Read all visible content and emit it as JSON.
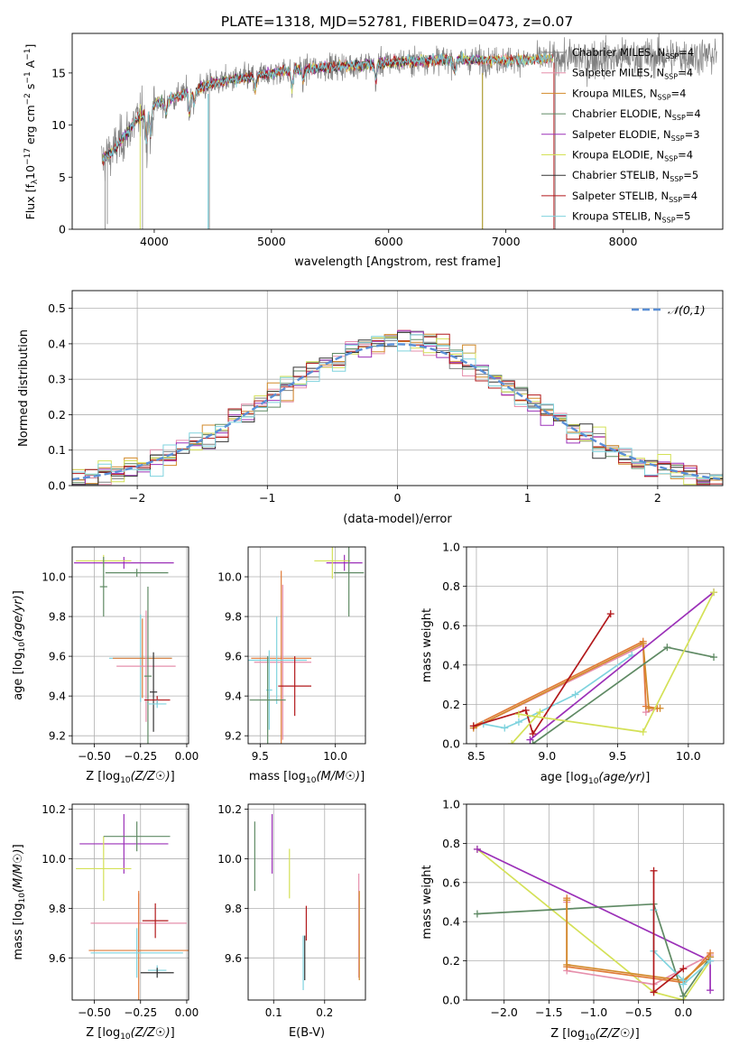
{
  "figure_title": "PLATE=1318, MJD=52781, FIBERID=0473, z=0.07",
  "colors": {
    "grey": "#808080",
    "orange": "#e07b39",
    "pink": "#e68fac",
    "darkorange": "#d28a2a",
    "green": "#5f8a64",
    "purple": "#9b30b8",
    "yellow": "#d4e157",
    "black": "#333333",
    "red": "#b2181b",
    "cyan": "#7fd3de",
    "blue": "#5a8fd6"
  },
  "chart_data": [
    {
      "id": "spectrum",
      "type": "line",
      "xlabel": "wavelength [Angstrom, rest frame]",
      "ylabel": "Flux [f_λ10^-17 erg cm^-2 s^-1 A^-1]",
      "xlim": [
        3300,
        8850
      ],
      "ylim": [
        0,
        18.8
      ],
      "xticks": [
        4000,
        5000,
        6000,
        7000,
        8000
      ],
      "yticks": [
        0,
        5,
        10,
        15
      ],
      "grid": false,
      "legend_position": "lower-right",
      "series": [
        {
          "name": "Chabrier MILES, N_SSP=4",
          "color": "#808080"
        },
        {
          "name": "Salpeter MILES, N_SSP=4",
          "color": "#e68fac"
        },
        {
          "name": "Kroupa MILES, N_SSP=4",
          "color": "#d28a2a"
        },
        {
          "name": "Chabrier ELODIE, N_SSP=4",
          "color": "#5f8a64"
        },
        {
          "name": "Salpeter ELODIE, N_SSP=3",
          "color": "#9b30b8"
        },
        {
          "name": "Kroupa ELODIE, N_SSP=4",
          "color": "#d4e157"
        },
        {
          "name": "Chabrier STELIB, N_SSP=5",
          "color": "#333333"
        },
        {
          "name": "Salpeter STELIB, N_SSP=4",
          "color": "#b2181b"
        },
        {
          "name": "Kroupa STELIB, N_SSP=5",
          "color": "#7fd3de"
        }
      ],
      "continuum_knots": [
        [
          3550,
          6.5
        ],
        [
          3700,
          8.2
        ],
        [
          3850,
          10.5
        ],
        [
          4000,
          12.0
        ],
        [
          4200,
          12.8
        ],
        [
          4500,
          14.0
        ],
        [
          4800,
          14.6
        ],
        [
          5100,
          15.2
        ],
        [
          5500,
          15.6
        ],
        [
          6000,
          16.0
        ],
        [
          6500,
          16.3
        ],
        [
          7000,
          16.2
        ],
        [
          7400,
          16.4
        ],
        [
          8000,
          16.5
        ],
        [
          8800,
          16.7
        ]
      ]
    },
    {
      "id": "residual_hist",
      "type": "step",
      "xlabel": "(data-model)/error",
      "ylabel": "Normed distribution",
      "xlim": [
        -2.5,
        2.5
      ],
      "ylim": [
        0,
        0.55
      ],
      "xticks": [
        -2,
        -1,
        0,
        1,
        2
      ],
      "yticks": [
        0.0,
        0.1,
        0.2,
        0.3,
        0.4,
        0.5
      ],
      "grid": true,
      "legend": "𝒩(0,1)",
      "legend_position": "top-right",
      "normal_curve": {
        "mean": 0,
        "std": 1,
        "color": "#5a8fd6"
      },
      "bin_width": 0.1
    },
    {
      "id": "age_vs_Z",
      "type": "errorbar",
      "xlabel": "Z [log₁₀(Z/Z☉)]",
      "ylabel": "age  [log₁₀(age/yr)]",
      "xlim": [
        -0.62,
        0.01
      ],
      "ylim": [
        9.16,
        10.15
      ],
      "xticks": [
        -0.5,
        -0.25,
        0.0
      ],
      "yticks": [
        9.2,
        9.4,
        9.6,
        9.8,
        10.0
      ],
      "grid": true,
      "points": [
        {
          "x": -0.34,
          "y": 10.07,
          "xerr": 0.27,
          "yerr": 0.03,
          "color": "#9b30b8"
        },
        {
          "x": -0.45,
          "y": 10.08,
          "xerr": 0.15,
          "yerr": 0.03,
          "color": "#d4e157"
        },
        {
          "x": -0.27,
          "y": 10.02,
          "xerr": 0.17,
          "yerr": 0.02,
          "color": "#5f8a64"
        },
        {
          "x": -0.45,
          "y": 9.95,
          "xerr": 0.02,
          "yerr": 0.15,
          "color": "#5f8a64"
        },
        {
          "x": -0.25,
          "y": 9.59,
          "xerr": 0.17,
          "yerr": 0.22,
          "color": "#7fd3de"
        },
        {
          "x": -0.24,
          "y": 9.59,
          "xerr": 0.16,
          "yerr": 0.2,
          "color": "#e07b39"
        },
        {
          "x": -0.22,
          "y": 9.55,
          "xerr": 0.16,
          "yerr": 0.28,
          "color": "#e68fac"
        },
        {
          "x": -0.21,
          "y": 9.5,
          "xerr": 0.02,
          "yerr": 0.45,
          "color": "#5f8a64"
        },
        {
          "x": -0.18,
          "y": 9.42,
          "xerr": 0.02,
          "yerr": 0.2,
          "color": "#333333"
        },
        {
          "x": -0.16,
          "y": 9.38,
          "xerr": 0.07,
          "yerr": 0.02,
          "color": "#b2181b"
        },
        {
          "x": -0.16,
          "y": 9.36,
          "xerr": 0.05,
          "yerr": 0.02,
          "color": "#7fd3de"
        }
      ]
    },
    {
      "id": "age_vs_mass",
      "type": "errorbar",
      "xlabel": "mass [log₁₀(M/M☉)]",
      "ylabel": "",
      "xlim": [
        9.42,
        10.2
      ],
      "ylim": [
        9.16,
        10.15
      ],
      "xticks": [
        9.5,
        10.0
      ],
      "yticks": [
        9.2,
        9.4,
        9.6,
        9.8,
        10.0
      ],
      "grid": true,
      "points": [
        {
          "x": 10.06,
          "y": 10.07,
          "xerr": 0.12,
          "yerr": 0.04,
          "color": "#9b30b8"
        },
        {
          "x": 9.98,
          "y": 10.08,
          "xerr": 0.12,
          "yerr": 0.09,
          "color": "#d4e157"
        },
        {
          "x": 10.09,
          "y": 10.02,
          "xerr": 0.1,
          "yerr": 0.22,
          "color": "#5f8a64"
        },
        {
          "x": 9.64,
          "y": 9.59,
          "xerr": 0.2,
          "yerr": 0.44,
          "color": "#e07b39"
        },
        {
          "x": 9.65,
          "y": 9.57,
          "xerr": 0.19,
          "yerr": 0.39,
          "color": "#e68fac"
        },
        {
          "x": 9.61,
          "y": 9.58,
          "xerr": 0.2,
          "yerr": 0.22,
          "color": "#7fd3de"
        },
        {
          "x": 9.56,
          "y": 9.43,
          "xerr": 0.02,
          "yerr": 0.2,
          "color": "#7fd3de"
        },
        {
          "x": 9.55,
          "y": 9.38,
          "xerr": 0.12,
          "yerr": 0.22,
          "color": "#5f8a64"
        },
        {
          "x": 9.73,
          "y": 9.45,
          "xerr": 0.11,
          "yerr": 0.15,
          "color": "#b2181b"
        }
      ]
    },
    {
      "id": "weight_vs_age",
      "type": "line",
      "xlabel": "age  [log₁₀(age/yr)]",
      "ylabel": "mass weight",
      "xlim": [
        8.43,
        10.25
      ],
      "ylim": [
        0,
        1
      ],
      "xticks": [
        8.5,
        9.0,
        9.5,
        10.0
      ],
      "yticks": [
        0.0,
        0.2,
        0.4,
        0.6,
        0.8,
        1.0
      ],
      "grid": true,
      "series": [
        {
          "color": "#e68fac",
          "points": [
            [
              8.48,
              0.08
            ],
            [
              9.68,
              0.5
            ],
            [
              9.7,
              0.16
            ],
            [
              9.78,
              0.18
            ]
          ]
        },
        {
          "color": "#e07b39",
          "points": [
            [
              8.48,
              0.09
            ],
            [
              9.68,
              0.52
            ],
            [
              9.7,
              0.19
            ],
            [
              9.78,
              0.18
            ]
          ]
        },
        {
          "color": "#d28a2a",
          "points": [
            [
              8.48,
              0.08
            ],
            [
              9.68,
              0.51
            ],
            [
              9.72,
              0.18
            ],
            [
              9.8,
              0.18
            ]
          ]
        },
        {
          "color": "#7fd3de",
          "points": [
            [
              8.55,
              0.1
            ],
            [
              8.7,
              0.08
            ],
            [
              8.8,
              0.11
            ],
            [
              9.2,
              0.25
            ],
            [
              9.6,
              0.45
            ]
          ]
        },
        {
          "color": "#b2181b",
          "points": [
            [
              8.48,
              0.09
            ],
            [
              8.85,
              0.17
            ],
            [
              8.9,
              0.05
            ],
            [
              9.45,
              0.66
            ]
          ]
        },
        {
          "color": "#5f8a64",
          "points": [
            [
              8.9,
              0.0
            ],
            [
              9.85,
              0.49
            ],
            [
              10.18,
              0.44
            ]
          ]
        },
        {
          "color": "#9b30b8",
          "points": [
            [
              8.88,
              0.02
            ],
            [
              10.18,
              0.77
            ]
          ]
        },
        {
          "color": "#d4e157",
          "points": [
            [
              8.8,
              0.15
            ],
            [
              9.68,
              0.06
            ],
            [
              10.18,
              0.77
            ]
          ]
        },
        {
          "color": "#d4e157",
          "points": [
            [
              8.75,
              0.0
            ],
            [
              8.95,
              0.16
            ]
          ]
        }
      ]
    },
    {
      "id": "mass_vs_Z",
      "type": "errorbar",
      "xlabel": "Z [log₁₀(Z/Z☉)]",
      "ylabel": "mass [log₁₀(M/M☉)]",
      "xlim": [
        -0.62,
        0.01
      ],
      "ylim": [
        9.43,
        10.22
      ],
      "xticks": [
        -0.5,
        -0.25,
        0.0
      ],
      "yticks": [
        9.6,
        9.8,
        10.0,
        10.2
      ],
      "grid": true,
      "points": [
        {
          "x": -0.34,
          "y": 10.06,
          "xerr": 0.24,
          "yerr": 0.12,
          "color": "#9b30b8"
        },
        {
          "x": -0.45,
          "y": 9.96,
          "xerr": 0.15,
          "yerr": 0.13,
          "color": "#d4e157"
        },
        {
          "x": -0.27,
          "y": 10.09,
          "xerr": 0.18,
          "yerr": 0.06,
          "color": "#5f8a64"
        },
        {
          "x": -0.26,
          "y": 9.74,
          "xerr": 0.26,
          "yerr": 0.12,
          "color": "#e68fac"
        },
        {
          "x": -0.26,
          "y": 9.63,
          "xerr": 0.27,
          "yerr": 0.24,
          "color": "#e07b39"
        },
        {
          "x": -0.27,
          "y": 9.62,
          "xerr": 0.25,
          "yerr": 0.1,
          "color": "#7fd3de"
        },
        {
          "x": -0.17,
          "y": 9.75,
          "xerr": 0.07,
          "yerr": 0.07,
          "color": "#b2181b"
        },
        {
          "x": -0.16,
          "y": 9.55,
          "xerr": 0.05,
          "yerr": 0.02,
          "color": "#7fd3de"
        },
        {
          "x": -0.16,
          "y": 9.54,
          "xerr": 0.09,
          "yerr": 0.02,
          "color": "#333333"
        }
      ]
    },
    {
      "id": "mass_vs_ebv",
      "type": "errorbar",
      "xlabel": "E(B-V)",
      "ylabel": "",
      "xlim": [
        0.05,
        0.28
      ],
      "ylim": [
        9.43,
        10.22
      ],
      "xticks": [
        0.1,
        0.2
      ],
      "yticks": [
        9.6,
        9.8,
        10.0,
        10.2
      ],
      "grid": true,
      "points": [
        {
          "x": 0.063,
          "y": 10.01,
          "yerr": 0.14,
          "color": "#5f8a64"
        },
        {
          "x": 0.097,
          "y": 10.06,
          "yerr": 0.12,
          "color": "#9b30b8"
        },
        {
          "x": 0.131,
          "y": 9.94,
          "yerr": 0.1,
          "color": "#d4e157"
        },
        {
          "x": 0.164,
          "y": 9.74,
          "yerr": 0.07,
          "color": "#b2181b"
        },
        {
          "x": 0.158,
          "y": 9.58,
          "yerr": 0.11,
          "color": "#7fd3de"
        },
        {
          "x": 0.161,
          "y": 9.6,
          "yerr": 0.09,
          "color": "#333333"
        },
        {
          "x": 0.267,
          "y": 9.73,
          "yerr": 0.21,
          "color": "#e68fac"
        },
        {
          "x": 0.268,
          "y": 9.69,
          "yerr": 0.18,
          "color": "#d28a2a"
        }
      ]
    },
    {
      "id": "weight_vs_Z",
      "type": "line",
      "xlabel": "Z [log₁₀(Z/Z☉)]",
      "ylabel": "mass weight",
      "xlim": [
        -2.42,
        0.45
      ],
      "ylim": [
        0,
        1
      ],
      "xticks": [
        -2.0,
        -1.5,
        -1.0,
        -0.5,
        0.0
      ],
      "yticks": [
        0.0,
        0.2,
        0.4,
        0.6,
        0.8,
        1.0
      ],
      "grid": true,
      "series": [
        {
          "color": "#d4e157",
          "points": [
            [
              -2.3,
              0.77
            ],
            [
              -0.33,
              0.04
            ],
            [
              0.0,
              0.0
            ],
            [
              0.3,
              0.2
            ]
          ]
        },
        {
          "color": "#9b30b8",
          "points": [
            [
              -2.3,
              0.77
            ],
            [
              0.3,
              0.2
            ],
            [
              0.3,
              0.05
            ]
          ]
        },
        {
          "color": "#5f8a64",
          "points": [
            [
              -2.3,
              0.44
            ],
            [
              -0.33,
              0.49
            ],
            [
              0.0,
              0.02
            ],
            [
              0.3,
              0.22
            ]
          ]
        },
        {
          "color": "#e68fac",
          "points": [
            [
              -1.3,
              0.5
            ],
            [
              -1.3,
              0.15
            ],
            [
              -0.33,
              0.08
            ],
            [
              0.3,
              0.23
            ]
          ]
        },
        {
          "color": "#e07b39",
          "points": [
            [
              -1.3,
              0.52
            ],
            [
              -1.3,
              0.17
            ],
            [
              0.0,
              0.09
            ],
            [
              0.3,
              0.24
            ]
          ]
        },
        {
          "color": "#d28a2a",
          "points": [
            [
              -1.3,
              0.51
            ],
            [
              -1.3,
              0.18
            ],
            [
              0.0,
              0.1
            ],
            [
              0.3,
              0.22
            ]
          ]
        },
        {
          "color": "#7fd3de",
          "points": [
            [
              -0.33,
              0.46
            ],
            [
              -0.33,
              0.25
            ],
            [
              0.0,
              0.1
            ],
            [
              0.0,
              0.08
            ],
            [
              0.3,
              0.2
            ]
          ]
        },
        {
          "color": "#b2181b",
          "points": [
            [
              -0.33,
              0.66
            ],
            [
              -0.33,
              0.04
            ],
            [
              0.0,
              0.16
            ]
          ]
        }
      ]
    }
  ]
}
